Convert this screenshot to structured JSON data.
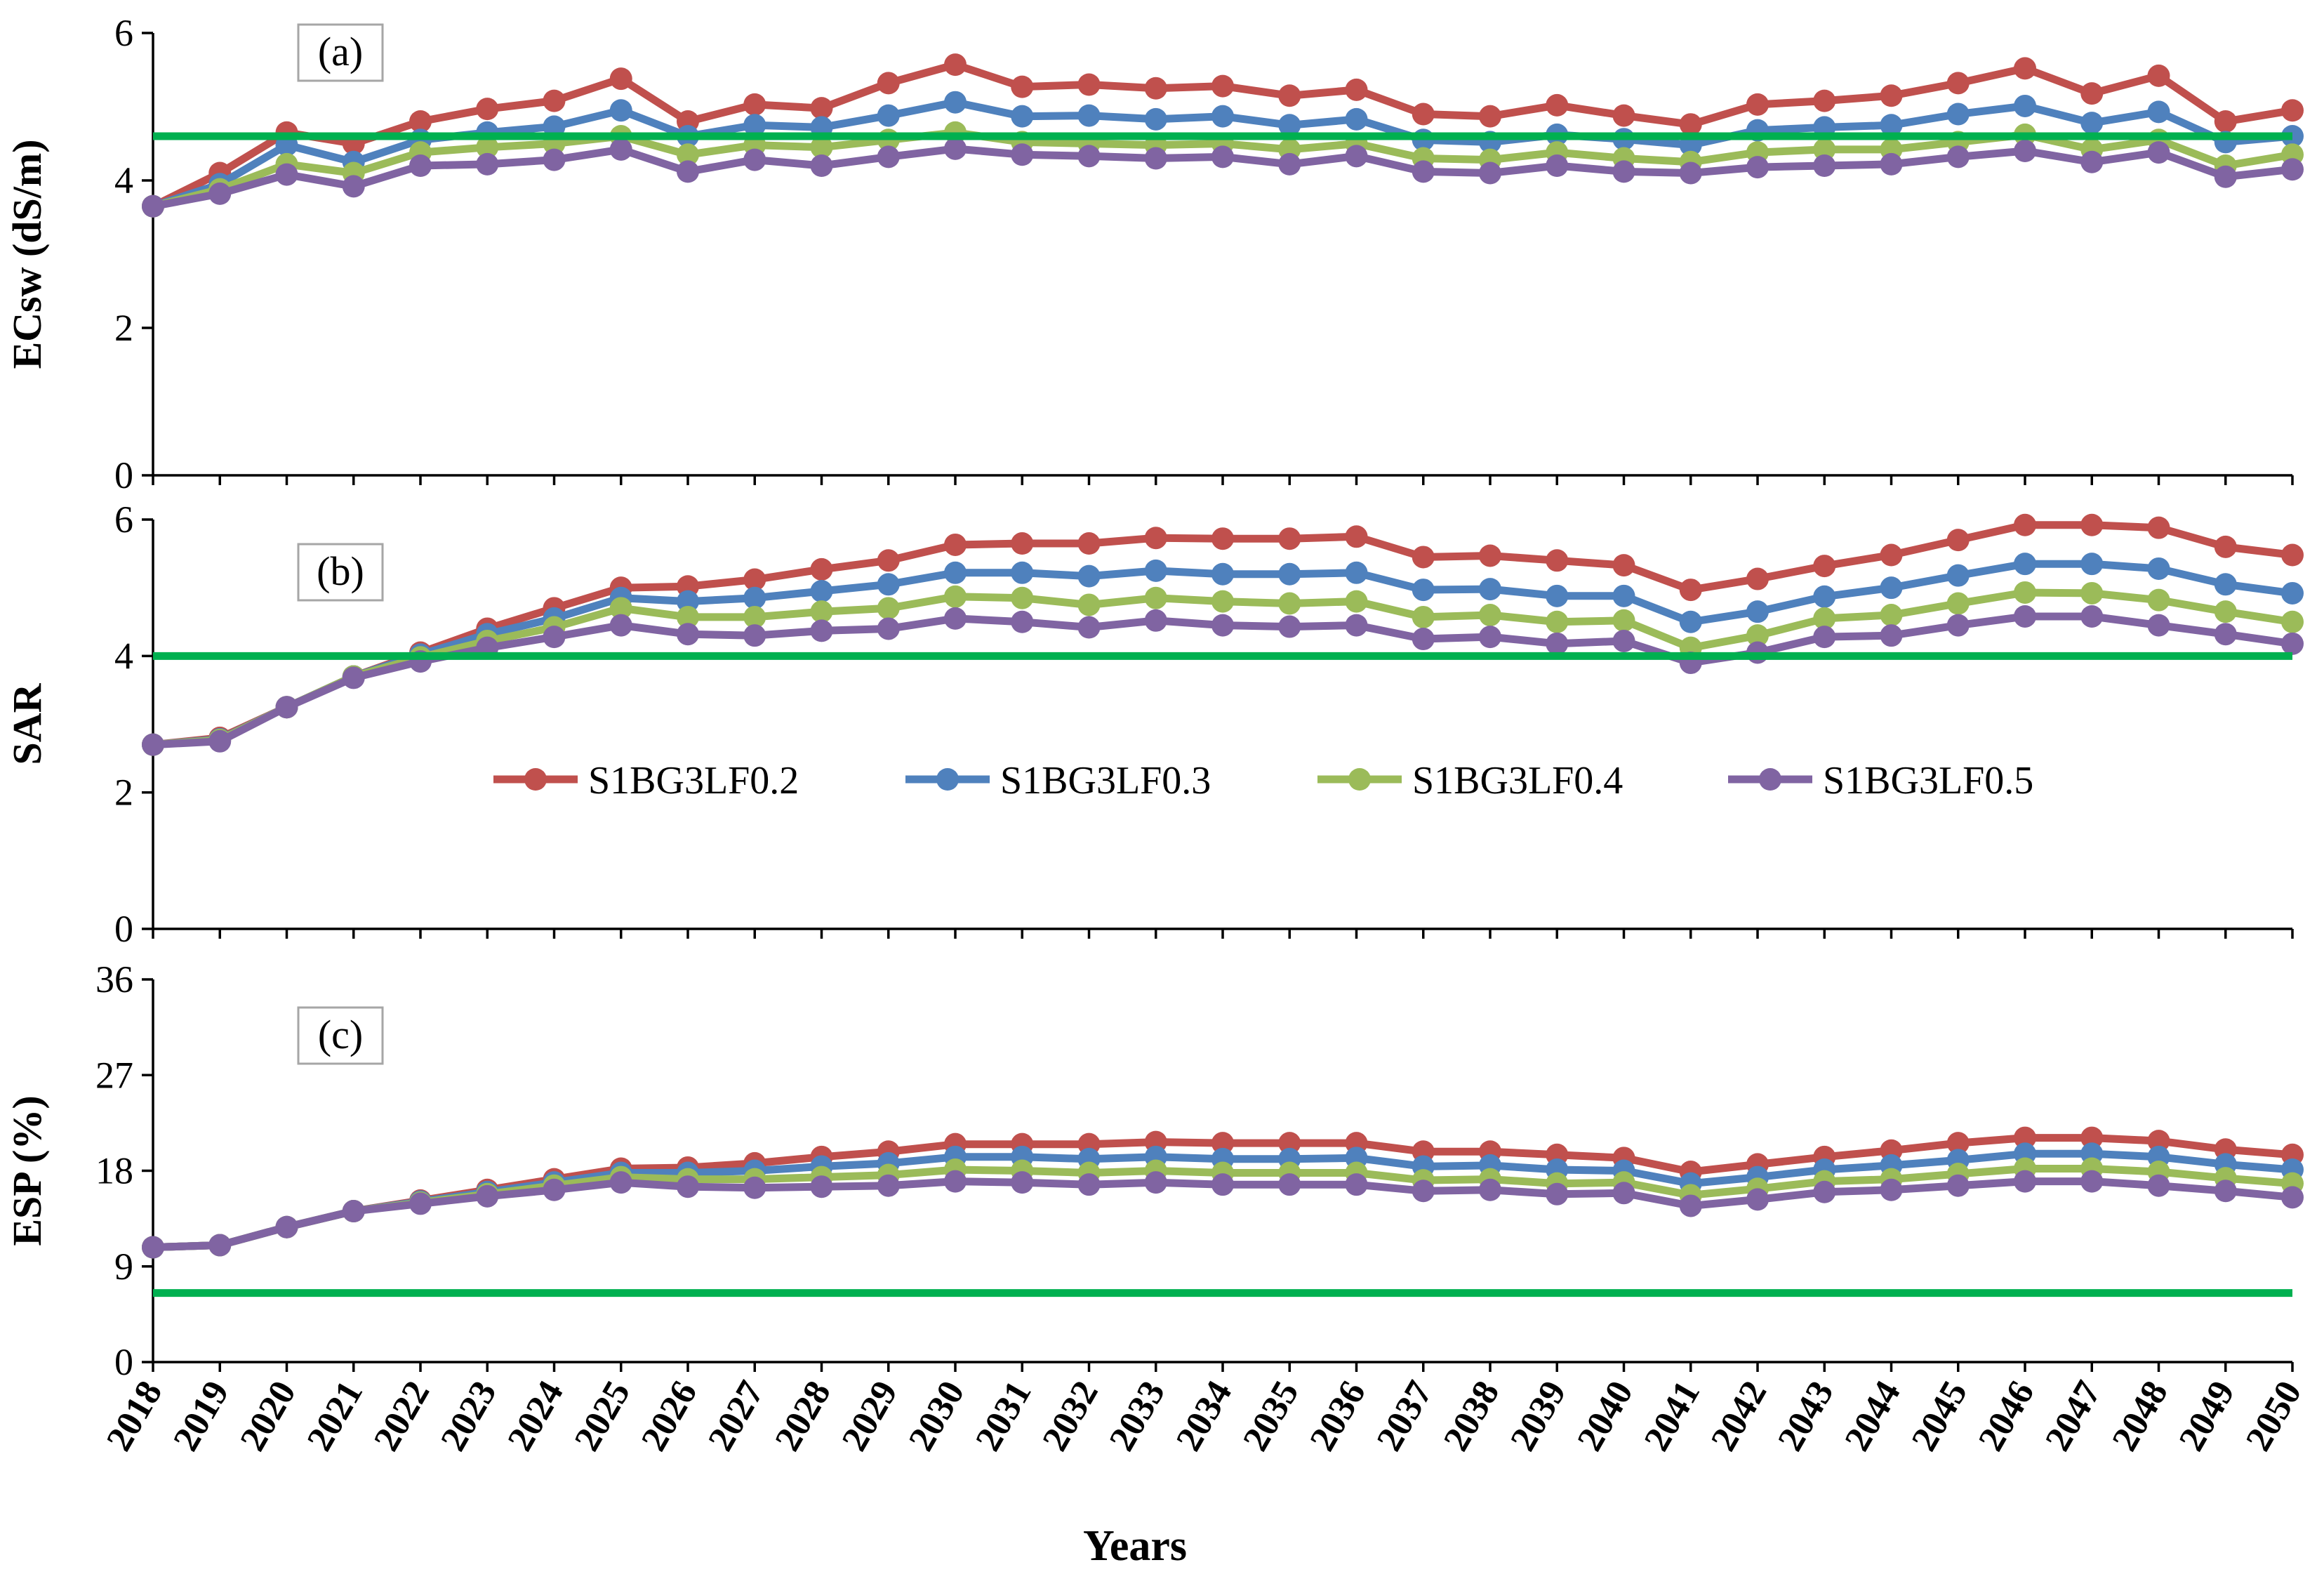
{
  "chart_data": [
    {
      "type": "line",
      "panel_label": "(a)",
      "ylabel": "ECsw (dS/m)",
      "ylim": [
        0,
        6
      ],
      "yticks": [
        0,
        2,
        4,
        6
      ],
      "threshold": 4.6,
      "x": [
        2018,
        2019,
        2020,
        2021,
        2022,
        2023,
        2024,
        2025,
        2026,
        2027,
        2028,
        2029,
        2030,
        2031,
        2032,
        2033,
        2034,
        2035,
        2036,
        2037,
        2038,
        2039,
        2040,
        2041,
        2042,
        2043,
        2044,
        2045,
        2046,
        2047,
        2048,
        2049,
        2050
      ],
      "series": [
        {
          "name": "S1BG3LF0.2",
          "values": [
            3.65,
            4.1,
            4.65,
            4.5,
            4.8,
            4.97,
            5.08,
            5.38,
            4.8,
            5.03,
            4.98,
            5.32,
            5.57,
            5.27,
            5.3,
            5.25,
            5.28,
            5.15,
            5.23,
            4.9,
            4.87,
            5.02,
            4.88,
            4.76,
            5.03,
            5.08,
            5.15,
            5.32,
            5.52,
            5.18,
            5.42,
            4.8,
            4.95
          ]
        },
        {
          "name": "S1BG3LF0.3",
          "values": [
            3.65,
            3.95,
            4.48,
            4.25,
            4.55,
            4.65,
            4.73,
            4.95,
            4.6,
            4.75,
            4.72,
            4.88,
            5.06,
            4.87,
            4.88,
            4.83,
            4.87,
            4.75,
            4.83,
            4.55,
            4.52,
            4.62,
            4.56,
            4.48,
            4.68,
            4.72,
            4.75,
            4.9,
            5.01,
            4.78,
            4.93,
            4.52,
            4.6
          ]
        },
        {
          "name": "S1BG3LF0.4",
          "values": [
            3.65,
            3.88,
            4.22,
            4.1,
            4.38,
            4.45,
            4.5,
            4.6,
            4.35,
            4.48,
            4.45,
            4.55,
            4.65,
            4.52,
            4.5,
            4.48,
            4.5,
            4.42,
            4.5,
            4.3,
            4.28,
            4.38,
            4.3,
            4.25,
            4.38,
            4.42,
            4.42,
            4.52,
            4.62,
            4.42,
            4.55,
            4.2,
            4.35
          ]
        },
        {
          "name": "S1BG3LF0.5",
          "values": [
            3.65,
            3.82,
            4.08,
            3.92,
            4.2,
            4.22,
            4.28,
            4.42,
            4.12,
            4.28,
            4.2,
            4.32,
            4.43,
            4.35,
            4.33,
            4.3,
            4.32,
            4.22,
            4.33,
            4.12,
            4.1,
            4.2,
            4.12,
            4.1,
            4.18,
            4.2,
            4.22,
            4.32,
            4.4,
            4.25,
            4.38,
            4.05,
            4.15
          ]
        }
      ]
    },
    {
      "type": "line",
      "panel_label": "(b)",
      "ylabel": "SAR",
      "ylim": [
        0,
        6
      ],
      "yticks": [
        0,
        2,
        4,
        6
      ],
      "threshold": 4.0,
      "x": [
        2018,
        2019,
        2020,
        2021,
        2022,
        2023,
        2024,
        2025,
        2026,
        2027,
        2028,
        2029,
        2030,
        2031,
        2032,
        2033,
        2034,
        2035,
        2036,
        2037,
        2038,
        2039,
        2040,
        2041,
        2042,
        2043,
        2044,
        2045,
        2046,
        2047,
        2048,
        2049,
        2050
      ],
      "series": [
        {
          "name": "S1BG3LF0.2",
          "values": [
            2.7,
            2.8,
            3.25,
            3.7,
            4.05,
            4.4,
            4.7,
            5.0,
            5.02,
            5.12,
            5.27,
            5.4,
            5.63,
            5.65,
            5.65,
            5.73,
            5.72,
            5.72,
            5.75,
            5.45,
            5.47,
            5.4,
            5.33,
            4.97,
            5.13,
            5.32,
            5.48,
            5.7,
            5.92,
            5.92,
            5.88,
            5.6,
            5.48
          ]
        },
        {
          "name": "S1BG3LF0.3",
          "values": [
            2.7,
            2.78,
            3.25,
            3.7,
            4.02,
            4.32,
            4.55,
            4.85,
            4.8,
            4.85,
            4.95,
            5.05,
            5.22,
            5.22,
            5.17,
            5.25,
            5.2,
            5.2,
            5.22,
            4.97,
            4.98,
            4.88,
            4.88,
            4.5,
            4.65,
            4.87,
            5.0,
            5.18,
            5.35,
            5.35,
            5.28,
            5.05,
            4.92
          ]
        },
        {
          "name": "S1BG3LF0.4",
          "values": [
            2.7,
            2.77,
            3.25,
            3.7,
            3.98,
            4.22,
            4.42,
            4.7,
            4.57,
            4.57,
            4.65,
            4.7,
            4.87,
            4.85,
            4.75,
            4.85,
            4.8,
            4.77,
            4.8,
            4.57,
            4.6,
            4.5,
            4.52,
            4.12,
            4.3,
            4.55,
            4.6,
            4.77,
            4.93,
            4.92,
            4.82,
            4.65,
            4.5
          ]
        },
        {
          "name": "S1BG3LF0.5",
          "values": [
            2.7,
            2.75,
            3.25,
            3.68,
            3.92,
            4.12,
            4.28,
            4.45,
            4.32,
            4.3,
            4.37,
            4.4,
            4.55,
            4.5,
            4.42,
            4.52,
            4.45,
            4.43,
            4.45,
            4.25,
            4.28,
            4.18,
            4.22,
            3.9,
            4.05,
            4.28,
            4.3,
            4.45,
            4.58,
            4.58,
            4.45,
            4.32,
            4.18
          ]
        }
      ]
    },
    {
      "type": "line",
      "panel_label": "(c)",
      "ylabel": "ESP (%)",
      "ylim": [
        0,
        36
      ],
      "yticks": [
        0,
        9,
        18,
        27,
        36
      ],
      "threshold": 6.5,
      "x": [
        2018,
        2019,
        2020,
        2021,
        2022,
        2023,
        2024,
        2025,
        2026,
        2027,
        2028,
        2029,
        2030,
        2031,
        2032,
        2033,
        2034,
        2035,
        2036,
        2037,
        2038,
        2039,
        2040,
        2041,
        2042,
        2043,
        2044,
        2045,
        2046,
        2047,
        2048,
        2049,
        2050
      ],
      "series": [
        {
          "name": "S1BG3LF0.2",
          "values": [
            10.8,
            11.0,
            12.7,
            14.2,
            15.2,
            16.2,
            17.2,
            18.2,
            18.3,
            18.7,
            19.3,
            19.8,
            20.5,
            20.5,
            20.5,
            20.7,
            20.6,
            20.6,
            20.6,
            19.8,
            19.8,
            19.5,
            19.2,
            17.9,
            18.6,
            19.3,
            19.9,
            20.6,
            21.1,
            21.1,
            20.8,
            20.0,
            19.5
          ]
        },
        {
          "name": "S1BG3LF0.3",
          "values": [
            10.8,
            11.0,
            12.7,
            14.2,
            15.1,
            16.0,
            16.9,
            17.8,
            17.8,
            18.0,
            18.4,
            18.7,
            19.3,
            19.3,
            19.1,
            19.3,
            19.1,
            19.1,
            19.2,
            18.4,
            18.5,
            18.1,
            18.0,
            16.8,
            17.4,
            18.1,
            18.5,
            19.0,
            19.6,
            19.6,
            19.3,
            18.6,
            18.1
          ]
        },
        {
          "name": "S1BG3LF0.4",
          "values": [
            10.8,
            11.0,
            12.7,
            14.2,
            15.0,
            15.8,
            16.6,
            17.4,
            17.2,
            17.2,
            17.4,
            17.6,
            18.1,
            18.0,
            17.8,
            18.0,
            17.8,
            17.8,
            17.8,
            17.1,
            17.2,
            16.8,
            16.9,
            15.7,
            16.3,
            17.0,
            17.2,
            17.7,
            18.2,
            18.2,
            17.9,
            17.3,
            16.8
          ]
        },
        {
          "name": "S1BG3LF0.5",
          "values": [
            10.8,
            11.0,
            12.7,
            14.2,
            14.9,
            15.6,
            16.2,
            16.9,
            16.5,
            16.4,
            16.5,
            16.6,
            17.0,
            16.9,
            16.7,
            16.9,
            16.7,
            16.7,
            16.7,
            16.1,
            16.2,
            15.8,
            15.9,
            14.7,
            15.3,
            16.0,
            16.2,
            16.6,
            17.0,
            17.0,
            16.6,
            16.1,
            15.5
          ]
        }
      ]
    }
  ],
  "x_axis": {
    "xlabel": "Years",
    "tick_labels": [
      "2018",
      "2019",
      "2020",
      "2021",
      "2022",
      "2023",
      "2024",
      "2025",
      "2026",
      "2027",
      "2028",
      "2029",
      "2030",
      "2031",
      "2032",
      "2033",
      "2034",
      "2035",
      "2036",
      "2037",
      "2038",
      "2039",
      "2040",
      "2041",
      "2042",
      "2043",
      "2044",
      "2045",
      "2046",
      "2047",
      "2048",
      "2049",
      "2050"
    ]
  },
  "legend": {
    "placement": "inside panel (b), center",
    "entries": [
      "S1BG3LF0.2",
      "S1BG3LF0.3",
      "S1BG3LF0.4",
      "S1BG3LF0.5"
    ]
  },
  "colors": {
    "series": [
      "#c0504d",
      "#4f81bd",
      "#9bbb59",
      "#8064a2"
    ],
    "threshold": "#00b050",
    "axis": "#000000"
  }
}
